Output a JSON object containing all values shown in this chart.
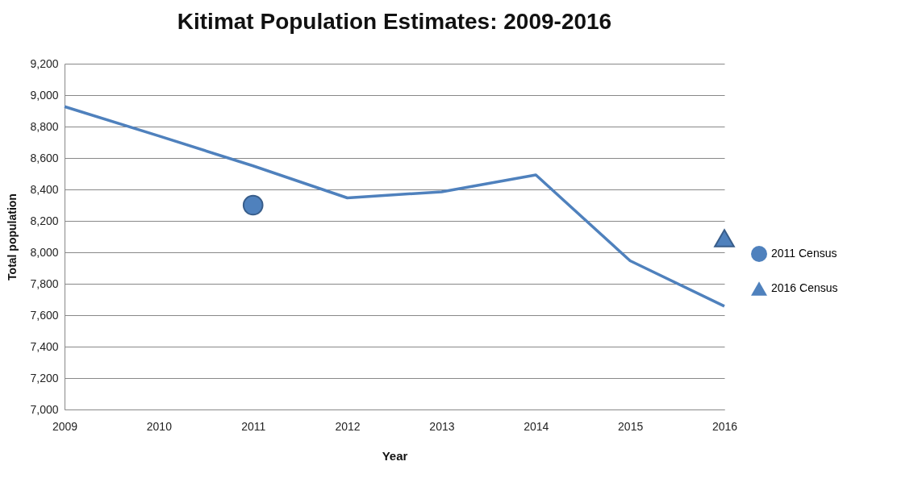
{
  "chart_data": {
    "type": "line",
    "title": "Kitimat Population Estimates: 2009-2016",
    "xlabel": "Year",
    "ylabel": "Total population",
    "x": [
      2009,
      2010,
      2011,
      2012,
      2013,
      2014,
      2015,
      2016
    ],
    "xlim": [
      2009,
      2016
    ],
    "xticks": [
      2009,
      2010,
      2011,
      2012,
      2013,
      2014,
      2015,
      2016
    ],
    "ylim": [
      7000,
      9200
    ],
    "yticks": [
      {
        "value": 7000,
        "label": "7,000"
      },
      {
        "value": 7200,
        "label": "7,200"
      },
      {
        "value": 7400,
        "label": "7,400"
      },
      {
        "value": 7600,
        "label": "7,600"
      },
      {
        "value": 7800,
        "label": "7,800"
      },
      {
        "value": 8000,
        "label": "8,000"
      },
      {
        "value": 8200,
        "label": "8,200"
      },
      {
        "value": 8400,
        "label": "8,400"
      },
      {
        "value": 8600,
        "label": "8,600"
      },
      {
        "value": 8800,
        "label": "8,800"
      },
      {
        "value": 9000,
        "label": "9,000"
      },
      {
        "value": 9200,
        "label": "9,200"
      }
    ],
    "grid": "y",
    "legend": "right",
    "series": [
      {
        "color": "#4f81bd",
        "values": [
          8927,
          8740,
          8550,
          8346,
          8385,
          8492,
          7946,
          7657
        ]
      },
      {
        "name": "2011 Census",
        "type": "scatter",
        "marker": "circle",
        "color": "#4f81bd",
        "x": [
          2011
        ],
        "values": [
          8300
        ]
      },
      {
        "name": "2016 Census",
        "type": "scatter",
        "marker": "triangle",
        "color": "#4f81bd",
        "x": [
          2016
        ],
        "values": [
          8090
        ]
      }
    ]
  }
}
